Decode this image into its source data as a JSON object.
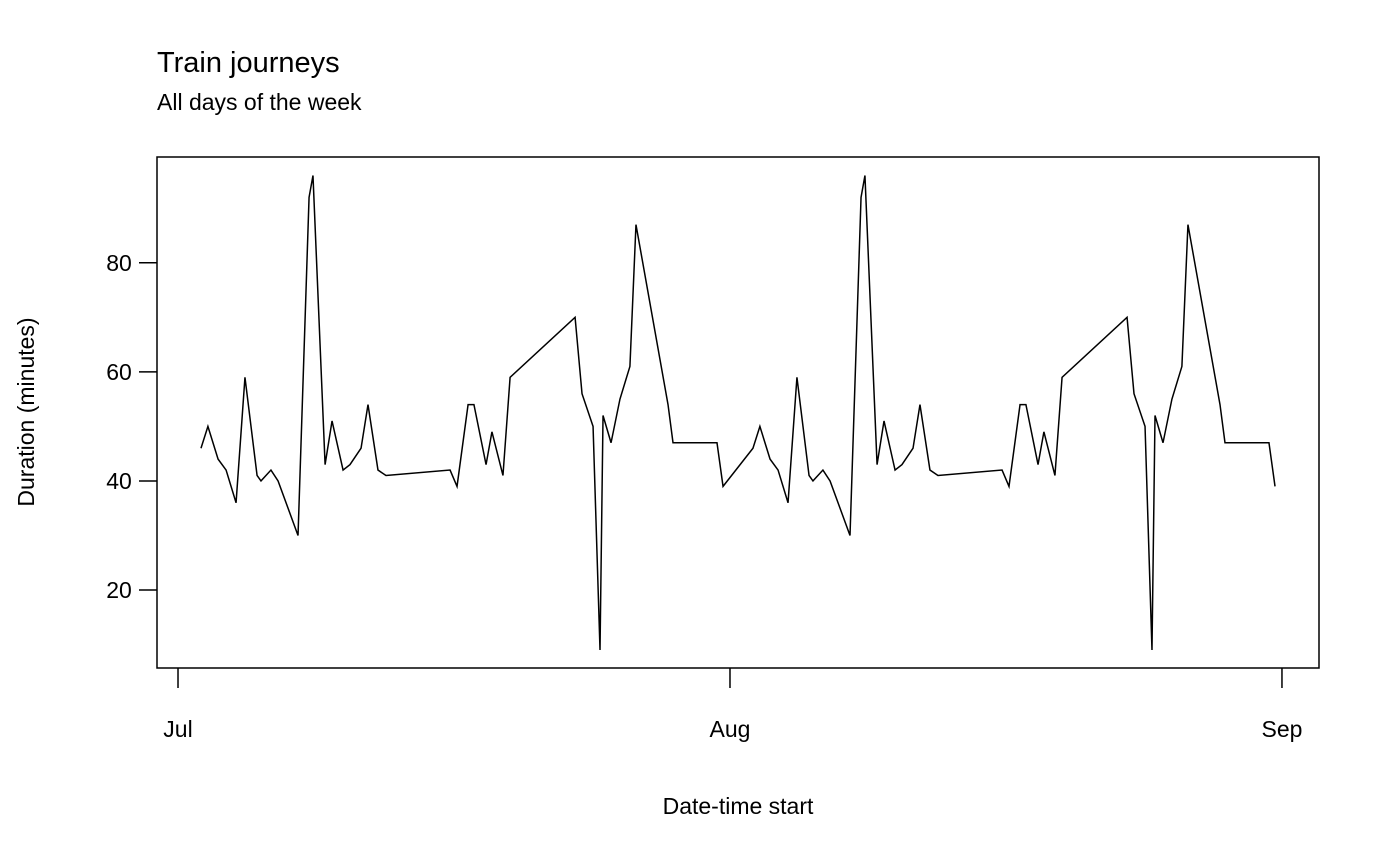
{
  "chart_data": {
    "type": "line",
    "title": "Train journeys",
    "subtitle": "All days of the week",
    "x_label": "Date-time start",
    "y_label": "Duration (minutes)",
    "x": [
      1.29,
      1.68,
      2.25,
      2.7,
      3.26,
      3.76,
      4.44,
      4.66,
      5.22,
      5.62,
      6.74,
      7.36,
      7.58,
      8.26,
      8.65,
      9.27,
      9.66,
      10.28,
      10.67,
      11.23,
      11.68,
      15.28,
      15.67,
      16.29,
      16.62,
      17.3,
      17.63,
      18.25,
      18.65,
      22.3,
      22.69,
      23.31,
      23.7,
      23.87,
      24.32,
      24.82,
      25.38,
      25.72,
      27.52,
      27.8,
      30.27,
      30.61,
      32.29,
      32.68,
      33.25,
      33.7,
      34.26,
      34.76,
      35.44,
      35.66,
      36.22,
      36.62,
      37.74,
      38.36,
      38.58,
      39.26,
      39.65,
      40.27,
      40.66,
      41.28,
      41.67,
      42.23,
      42.68,
      46.28,
      46.67,
      47.29,
      47.62,
      48.3,
      48.63,
      49.25,
      49.65,
      53.3,
      53.69,
      54.31,
      54.7,
      54.87,
      55.32,
      55.82,
      56.38,
      56.72,
      58.52,
      58.8,
      61.27,
      61.61
    ],
    "values": [
      46,
      50,
      44,
      42,
      36,
      59,
      41,
      40,
      42,
      40,
      30,
      92,
      96,
      43,
      51,
      42,
      43,
      46,
      54,
      42,
      41,
      42,
      39,
      54,
      54,
      43,
      49,
      41,
      59,
      70,
      56,
      50,
      9,
      52,
      47,
      55,
      61,
      87,
      54,
      47,
      47,
      39,
      46,
      50,
      44,
      42,
      36,
      59,
      41,
      40,
      42,
      40,
      30,
      92,
      96,
      43,
      51,
      42,
      43,
      46,
      54,
      42,
      41,
      42,
      39,
      54,
      54,
      43,
      49,
      41,
      59,
      70,
      56,
      50,
      9,
      52,
      47,
      55,
      61,
      87,
      54,
      47,
      47,
      39
    ],
    "color": "#000000",
    "xlim": [
      -1.18,
      64.08
    ],
    "ylim": [
      5.7,
      99.4
    ],
    "xticks": [
      {
        "value": 0,
        "label": "Jul"
      },
      {
        "value": 31,
        "label": "Aug"
      },
      {
        "value": 62,
        "label": "Sep"
      }
    ],
    "yticks": [
      20,
      40,
      60,
      80
    ],
    "grid": false
  }
}
